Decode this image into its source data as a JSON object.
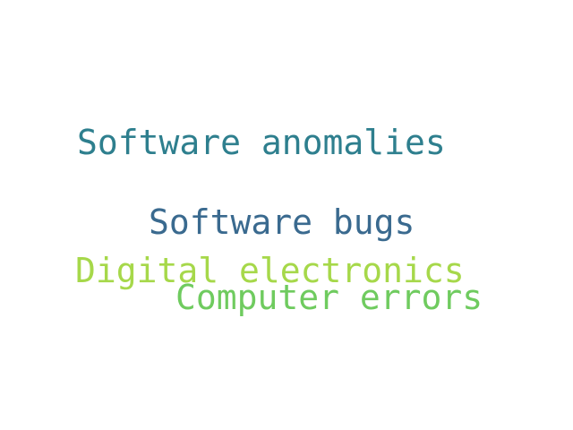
{
  "words": [
    {
      "text": "Software anomalies",
      "color": "#2e7f8e"
    },
    {
      "text": "Software bugs",
      "color": "#3a6a8f"
    },
    {
      "text": "Digital electronics",
      "color": "#a6d84a"
    },
    {
      "text": "Computer errors",
      "color": "#6fcb5f"
    }
  ]
}
